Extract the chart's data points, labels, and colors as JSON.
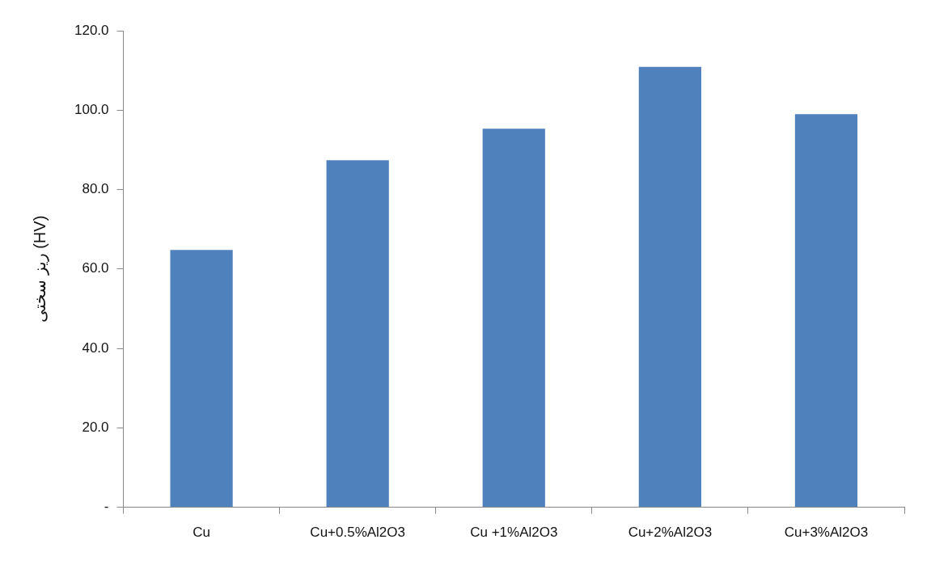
{
  "chart_data": {
    "type": "bar",
    "ylabel": "ریز سختی (HV)",
    "categories": [
      "Cu",
      "Cu+0.5%Al2O3",
      "Cu +1%Al2O3",
      "Cu+2%Al2O3",
      "Cu+3%Al2O3"
    ],
    "values": [
      64.8,
      87.4,
      95.3,
      110.9,
      99.0
    ],
    "color": "#4f81bd",
    "ylim": [
      0,
      120
    ],
    "yticks": [
      {
        "value": 0,
        "label": "-"
      },
      {
        "value": 20,
        "label": "20.0"
      },
      {
        "value": 40,
        "label": "40.0"
      },
      {
        "value": 60,
        "label": "60.0"
      },
      {
        "value": 80,
        "label": "80.0"
      },
      {
        "value": 100,
        "label": "100.0"
      },
      {
        "value": 120,
        "label": "120.0"
      }
    ],
    "grid": false,
    "legend": false
  }
}
